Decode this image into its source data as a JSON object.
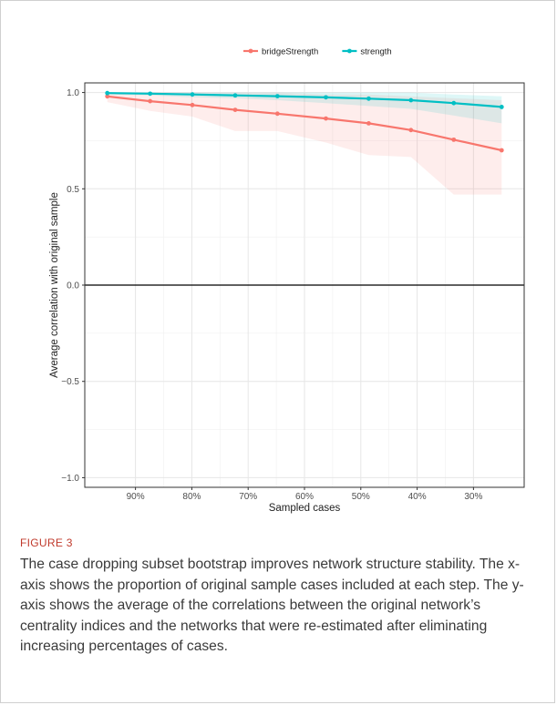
{
  "figure": {
    "label": "FIGURE 3",
    "caption": "The case dropping subset bootstrap improves network structure stability. The x-axis shows the proportion of original sample cases included at each step. The y-axis shows the average of the correlations between the original network’s centrality indices and the networks that were re-estimated after eliminating increasing percentages of cases."
  },
  "chart_data": {
    "type": "line",
    "title": "",
    "xlabel": "Sampled cases",
    "ylabel": "Average correlation with original sample",
    "x": [
      0.95,
      0.874,
      0.799,
      0.723,
      0.648,
      0.562,
      0.486,
      0.411,
      0.335,
      0.25
    ],
    "xlim": [
      0.99,
      0.21
    ],
    "x_ticks": [
      0.9,
      0.8,
      0.7,
      0.6,
      0.5,
      0.4,
      0.3
    ],
    "x_tick_labels": [
      "90%",
      "80%",
      "70%",
      "60%",
      "50%",
      "40%",
      "30%"
    ],
    "ylim": [
      -1.05,
      1.05
    ],
    "y_ticks": [
      -1.0,
      -0.5,
      0.0,
      0.5,
      1.0
    ],
    "y_tick_labels": [
      "−1.0",
      "−0.5",
      "0.0",
      "0.5",
      "1.0"
    ],
    "hline": 0,
    "grid": true,
    "legend_position": "top",
    "series": [
      {
        "name": "bridgeStrength",
        "color": "#F8766D",
        "values": [
          0.98,
          0.955,
          0.935,
          0.91,
          0.89,
          0.865,
          0.84,
          0.805,
          0.755,
          0.7
        ],
        "lower": [
          0.95,
          0.905,
          0.875,
          0.8,
          0.8,
          0.74,
          0.675,
          0.665,
          0.47,
          0.47
        ],
        "upper": [
          1.0,
          1.0,
          1.0,
          1.0,
          1.0,
          0.99,
          0.99,
          0.98,
          0.97,
          0.96
        ]
      },
      {
        "name": "strength",
        "color": "#00BFC4",
        "values": [
          0.997,
          0.994,
          0.99,
          0.985,
          0.981,
          0.975,
          0.968,
          0.96,
          0.945,
          0.925
        ],
        "lower": [
          0.99,
          0.985,
          0.975,
          0.97,
          0.96,
          0.945,
          0.93,
          0.915,
          0.88,
          0.84
        ],
        "upper": [
          1.0,
          1.0,
          1.0,
          1.0,
          1.0,
          1.0,
          1.0,
          1.0,
          0.99,
          0.98
        ]
      }
    ]
  }
}
